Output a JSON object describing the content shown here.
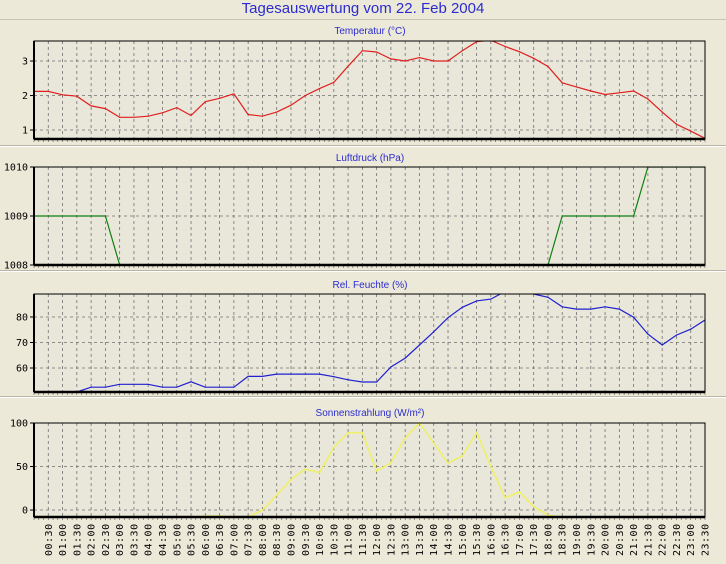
{
  "title": "Tagesauswertung vom 22. Feb 2004",
  "colors": {
    "background": "#ECE9D8",
    "title": "#2b2bd0",
    "temperature": "#e02020",
    "pressure": "#108010",
    "humidity": "#2020d0",
    "sun": "#f0f060"
  },
  "x_labels": [
    "00:30",
    "01:00",
    "01:30",
    "02:00",
    "02:30",
    "03:00",
    "03:30",
    "04:00",
    "04:30",
    "05:00",
    "05:30",
    "06:00",
    "06:30",
    "07:00",
    "07:30",
    "08:00",
    "08:30",
    "09:00",
    "09:30",
    "10:00",
    "10:30",
    "11:00",
    "11:30",
    "12:00",
    "12:30",
    "13:00",
    "13:30",
    "14:00",
    "14:30",
    "15:00",
    "15:30",
    "16:00",
    "16:30",
    "17:00",
    "17:30",
    "18:00",
    "18:30",
    "19:00",
    "19:30",
    "20:00",
    "20:30",
    "21:00",
    "21:30",
    "22:00",
    "22:30",
    "23:00",
    "23:30"
  ],
  "chart_data": [
    {
      "type": "line",
      "title": "Temperatur (°C)",
      "x_range": [
        "00:00",
        "23:30"
      ],
      "x_step_minutes": 30,
      "ylim": [
        0.74,
        3.58
      ],
      "yticks": [
        "1",
        "2",
        "3"
      ],
      "ytick_values": [
        1,
        2,
        3
      ],
      "grid": true,
      "color": "#e02020",
      "values": [
        2.12,
        2.12,
        2.02,
        1.98,
        1.7,
        1.62,
        1.37,
        1.37,
        1.4,
        1.5,
        1.65,
        1.42,
        1.82,
        1.92,
        2.05,
        1.45,
        1.4,
        1.52,
        1.72,
        2.0,
        2.2,
        2.38,
        2.85,
        3.3,
        3.26,
        3.06,
        3.0,
        3.1,
        3.0,
        3.0,
        3.3,
        3.56,
        3.6,
        3.42,
        3.27,
        3.08,
        2.84,
        2.37,
        2.25,
        2.13,
        2.03,
        2.08,
        2.13,
        1.9,
        1.52,
        1.17,
        0.97,
        0.76
      ]
    },
    {
      "type": "line",
      "title": "Luftdruck (hPa)",
      "x_range": [
        "00:00",
        "23:30"
      ],
      "x_step_minutes": 30,
      "ylim": [
        1008,
        1010
      ],
      "yticks": [
        "1008",
        "1009",
        "1010"
      ],
      "ytick_values": [
        1008,
        1009,
        1010
      ],
      "grid": true,
      "color": "#108010",
      "values": [
        1009,
        1009,
        1009,
        1009,
        1009,
        1009,
        1008,
        1008,
        1008,
        1008,
        1008,
        1008,
        1008,
        1008,
        1008,
        1008,
        1008,
        1008,
        1008,
        1008,
        1008,
        1008,
        1008,
        1008,
        1008,
        1008,
        1008,
        1008,
        1008,
        1008,
        1008,
        1008,
        1008,
        1008,
        1008,
        1008,
        1008,
        1009,
        1009,
        1009,
        1009,
        1009,
        1009,
        1010,
        1010,
        1010,
        1010,
        1010
      ]
    },
    {
      "type": "line",
      "title": "Rel. Feuchte (%)",
      "x_range": [
        "00:00",
        "23:30"
      ],
      "x_step_minutes": 30,
      "ylim": [
        50.6,
        89
      ],
      "yticks": [
        "60",
        "70",
        "80"
      ],
      "ytick_values": [
        60,
        70,
        80
      ],
      "grid": true,
      "color": "#2020d0",
      "values": [
        50,
        50,
        50,
        50.6,
        52.5,
        52.5,
        53.6,
        53.6,
        53.6,
        52.5,
        52.5,
        54.6,
        52.5,
        52.5,
        52.5,
        56.7,
        56.7,
        57.6,
        57.6,
        57.6,
        57.6,
        56.6,
        55.4,
        54.5,
        54.5,
        60.4,
        63.9,
        69,
        74.2,
        79.7,
        83.8,
        86.3,
        87,
        90,
        90,
        89,
        87.7,
        84,
        83.1,
        83.1,
        84,
        83.1,
        79.9,
        73.3,
        69,
        72.9,
        75.2,
        78.8
      ]
    },
    {
      "type": "line",
      "title": "Sonnenstrahlung (W/m²)",
      "x_range": [
        "00:00",
        "23:30"
      ],
      "x_step_minutes": 30,
      "ylim": [
        -8,
        100
      ],
      "yticks": [
        "0",
        "50",
        "100"
      ],
      "ytick_values": [
        0,
        50,
        100
      ],
      "grid": true,
      "color": "#f0f060",
      "values": [
        null,
        null,
        null,
        null,
        null,
        null,
        null,
        null,
        null,
        null,
        null,
        -8,
        -7,
        -7,
        -8,
        -8,
        0,
        17,
        35,
        47,
        43,
        72,
        89,
        89,
        45,
        54,
        83,
        100,
        77,
        54,
        62,
        89,
        50,
        14,
        21,
        4,
        -6,
        -8,
        null,
        null,
        null,
        null,
        null,
        null,
        null,
        null,
        null,
        null
      ]
    }
  ]
}
